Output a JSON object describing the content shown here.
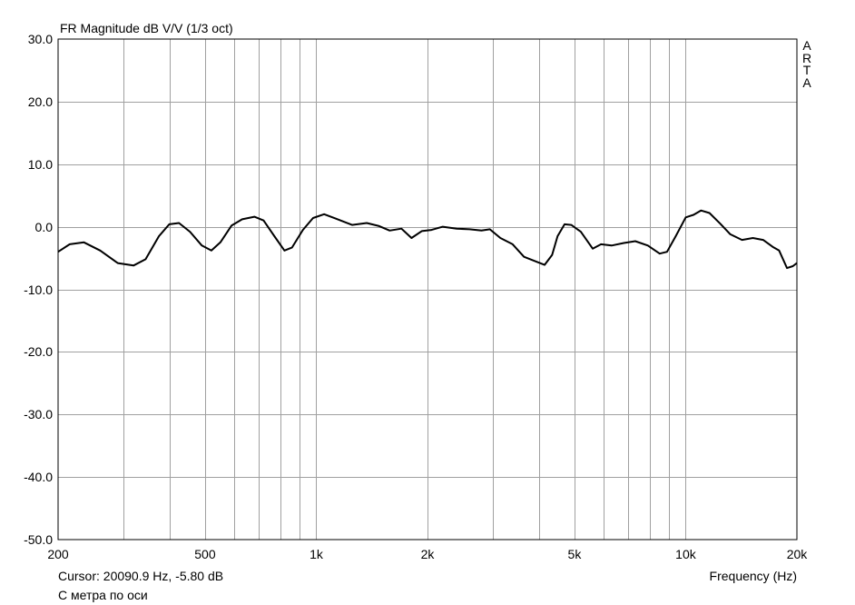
{
  "chart_data": {
    "type": "line",
    "title": "FR Magnitude dB V/V (1/3 oct)",
    "xlabel": "Frequency (Hz)",
    "ylabel": "",
    "xscale": "log",
    "xlim": [
      200,
      20000
    ],
    "ylim": [
      -50,
      30
    ],
    "grid": true,
    "yticks": [
      "30.0",
      "20.0",
      "10.0",
      "0.0",
      "-10.0",
      "-20.0",
      "-30.0",
      "-40.0",
      "-50.0"
    ],
    "xtick_labels": [
      {
        "value": 200,
        "label": "200"
      },
      {
        "value": 500,
        "label": "500"
      },
      {
        "value": 1000,
        "label": "1k"
      },
      {
        "value": 2000,
        "label": "2k"
      },
      {
        "value": 5000,
        "label": "5k"
      },
      {
        "value": 10000,
        "label": "10k"
      },
      {
        "value": 20000,
        "label": "20k"
      }
    ],
    "series": [
      {
        "color": "#000000",
        "points": [
          [
            200,
            -4.0
          ],
          [
            215,
            -2.8
          ],
          [
            235,
            -2.5
          ],
          [
            260,
            -3.8
          ],
          [
            290,
            -5.8
          ],
          [
            320,
            -6.2
          ],
          [
            345,
            -5.2
          ],
          [
            375,
            -1.5
          ],
          [
            400,
            0.4
          ],
          [
            425,
            0.6
          ],
          [
            455,
            -0.8
          ],
          [
            490,
            -3.0
          ],
          [
            520,
            -3.8
          ],
          [
            550,
            -2.5
          ],
          [
            590,
            0.2
          ],
          [
            630,
            1.2
          ],
          [
            680,
            1.6
          ],
          [
            720,
            1.0
          ],
          [
            770,
            -1.5
          ],
          [
            820,
            -3.8
          ],
          [
            860,
            -3.3
          ],
          [
            920,
            -0.5
          ],
          [
            980,
            1.4
          ],
          [
            1050,
            2.0
          ],
          [
            1130,
            1.3
          ],
          [
            1250,
            0.3
          ],
          [
            1370,
            0.6
          ],
          [
            1480,
            0.1
          ],
          [
            1580,
            -0.6
          ],
          [
            1700,
            -0.3
          ],
          [
            1810,
            -1.8
          ],
          [
            1930,
            -0.7
          ],
          [
            2050,
            -0.5
          ],
          [
            2200,
            0.0
          ],
          [
            2400,
            -0.3
          ],
          [
            2600,
            -0.4
          ],
          [
            2800,
            -0.6
          ],
          [
            2950,
            -0.4
          ],
          [
            3150,
            -1.8
          ],
          [
            3400,
            -2.8
          ],
          [
            3650,
            -4.8
          ],
          [
            3950,
            -5.6
          ],
          [
            4150,
            -6.1
          ],
          [
            4350,
            -4.5
          ],
          [
            4500,
            -1.5
          ],
          [
            4700,
            0.4
          ],
          [
            4900,
            0.3
          ],
          [
            5200,
            -0.8
          ],
          [
            5600,
            -3.5
          ],
          [
            5900,
            -2.8
          ],
          [
            6300,
            -3.0
          ],
          [
            6800,
            -2.6
          ],
          [
            7300,
            -2.3
          ],
          [
            7900,
            -3.0
          ],
          [
            8500,
            -4.3
          ],
          [
            8900,
            -4.0
          ],
          [
            9400,
            -1.5
          ],
          [
            10000,
            1.5
          ],
          [
            10500,
            1.9
          ],
          [
            11000,
            2.6
          ],
          [
            11600,
            2.2
          ],
          [
            12400,
            0.5
          ],
          [
            13200,
            -1.2
          ],
          [
            14200,
            -2.1
          ],
          [
            15200,
            -1.8
          ],
          [
            16200,
            -2.1
          ],
          [
            17200,
            -3.2
          ],
          [
            17900,
            -3.8
          ],
          [
            18800,
            -6.6
          ],
          [
            19500,
            -6.3
          ],
          [
            20000,
            -5.8
          ]
        ]
      }
    ]
  },
  "labels": {
    "title": "FR Magnitude dB V/V (1/3 oct)",
    "watermark_letters": [
      "A",
      "R",
      "T",
      "A"
    ],
    "cursor_text": "Cursor: 20090.9 Hz, -5.80 dB",
    "note_text": "С метра по оси",
    "xlabel": "Frequency (Hz)",
    "ytick_labels": [
      "30.0",
      "20.0",
      "10.0",
      "0.0",
      "-10.0",
      "-20.0",
      "-30.0",
      "-40.0",
      "-50.0"
    ],
    "xtick_labels": [
      "200",
      "500",
      "1k",
      "2k",
      "5k",
      "10k",
      "20k"
    ]
  }
}
